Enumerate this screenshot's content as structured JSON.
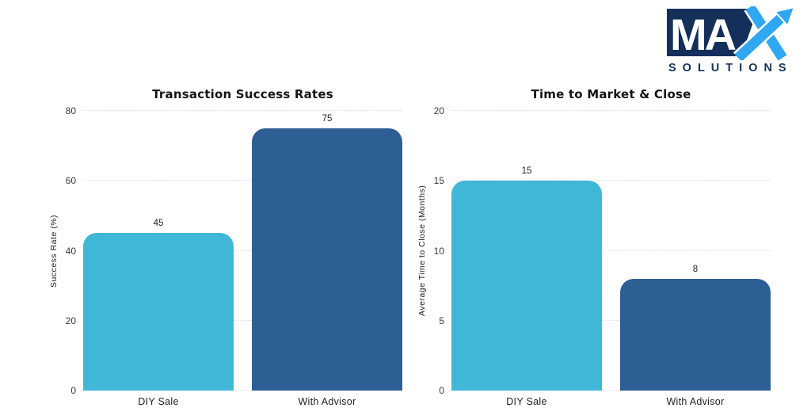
{
  "logo": {
    "text_ma": "MA",
    "text_x": "X",
    "subtitle": "SOLUTIONS",
    "navy": "#14305a",
    "blue": "#2fa7f2"
  },
  "chart_data": [
    {
      "type": "bar",
      "title": "Transaction Success Rates",
      "xlabel": "",
      "ylabel": "Success Rate (%)",
      "categories": [
        "DIY Sale",
        "With Advisor"
      ],
      "values": [
        45,
        75
      ],
      "value_labels": [
        "45",
        "75"
      ],
      "bar_colors": [
        "#41b7d7",
        "#2e5f94"
      ],
      "ylim": [
        0,
        80
      ],
      "yticks": [
        0,
        20,
        40,
        60,
        80
      ],
      "grid": "horizontal-dotted",
      "legend": "none"
    },
    {
      "type": "bar",
      "title": "Time to Market & Close",
      "xlabel": "",
      "ylabel": "Average Time to Close (Months)",
      "categories": [
        "DIY Sale",
        "With Advisor"
      ],
      "values": [
        15,
        8
      ],
      "value_labels": [
        "15",
        "8"
      ],
      "bar_colors": [
        "#41b7d7",
        "#2e5f94"
      ],
      "ylim": [
        0,
        20
      ],
      "yticks": [
        0,
        5,
        10,
        15,
        20
      ],
      "grid": "horizontal-dotted",
      "legend": "none"
    }
  ]
}
